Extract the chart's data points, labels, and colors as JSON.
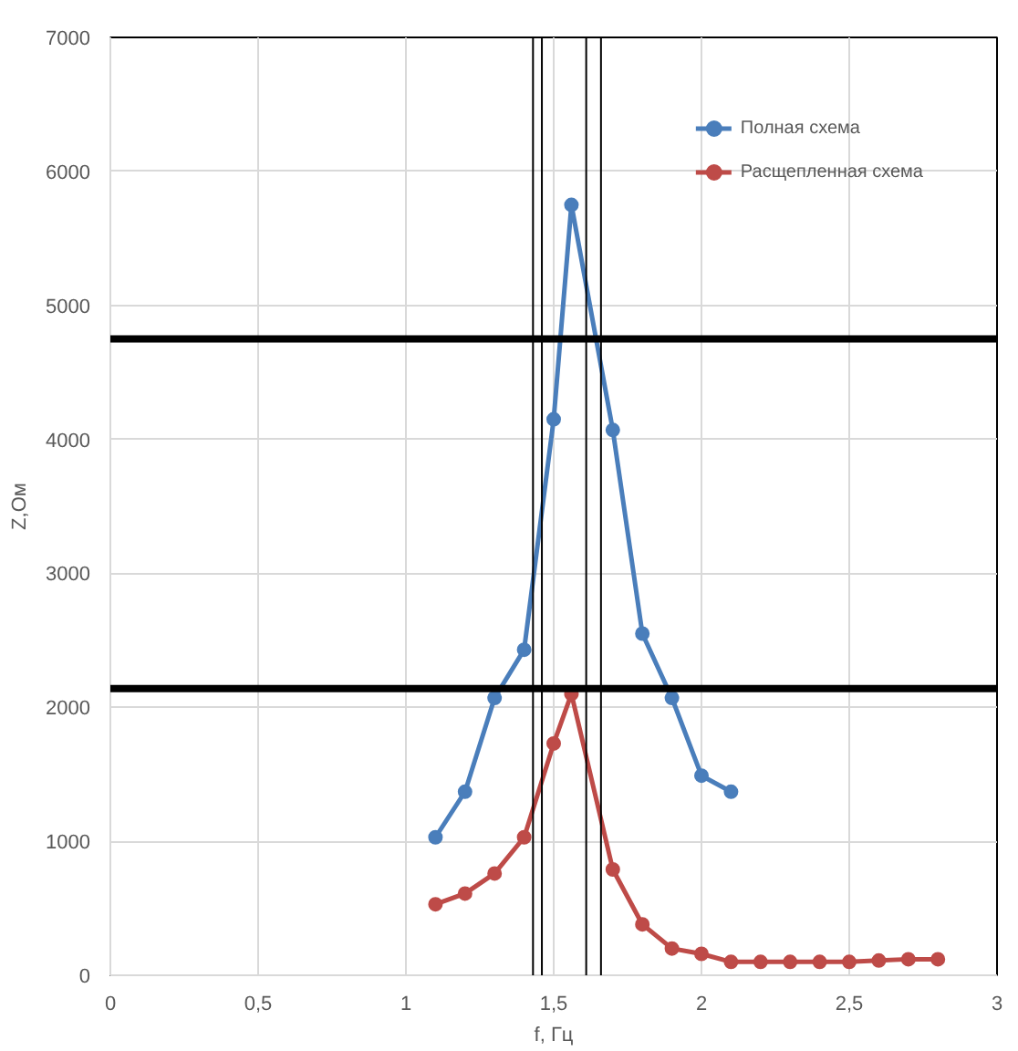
{
  "chart_data": {
    "type": "line",
    "xlabel": "f, Гц",
    "ylabel": "Z,Ом",
    "series": [
      {
        "name": "Полная схема",
        "color": "#4a7ebb",
        "x": [
          1.1,
          1.2,
          1.3,
          1.4,
          1.5,
          1.56,
          1.7,
          1.8,
          1.9,
          2.0,
          2.1
        ],
        "values": [
          1030,
          1370,
          2070,
          2430,
          4150,
          5750,
          4070,
          2550,
          2070,
          1490,
          1370
        ]
      },
      {
        "name": "Расщепленная схема",
        "color": "#be4b48",
        "x": [
          1.1,
          1.2,
          1.3,
          1.4,
          1.5,
          1.56,
          1.7,
          1.8,
          1.9,
          2.0,
          2.1,
          2.2,
          2.3,
          2.4,
          2.5,
          2.6,
          2.7,
          2.8
        ],
        "values": [
          530,
          610,
          760,
          1030,
          1730,
          2100,
          790,
          380,
          200,
          160,
          100,
          100,
          100,
          100,
          100,
          110,
          120,
          120
        ]
      }
    ],
    "xlim": [
      0,
      3
    ],
    "ylim": [
      0,
      7000
    ],
    "xticks": [
      0,
      {
        "value": 0.5,
        "label": "0,5"
      },
      1,
      {
        "value": 1.5,
        "label": "1,5"
      },
      2,
      {
        "value": 2.5,
        "label": "2,5"
      },
      3
    ],
    "yticks": [
      0,
      1000,
      2000,
      3000,
      4000,
      5000,
      6000,
      7000
    ],
    "ref_lines": [
      {
        "axis": "y",
        "value": 4750,
        "color": "#000000"
      },
      {
        "axis": "y",
        "value": 2140,
        "color": "#000000"
      },
      {
        "axis": "x",
        "value": 1.46,
        "color": "#000000"
      },
      {
        "axis": "x",
        "value": 1.66,
        "color": "#000000"
      },
      {
        "axis": "x",
        "value": 1.43,
        "color": "#000000"
      },
      {
        "axis": "x",
        "value": 1.61,
        "color": "#000000"
      }
    ],
    "grid": true,
    "legend": "top right",
    "marker": "circle",
    "line_style": "solid"
  }
}
